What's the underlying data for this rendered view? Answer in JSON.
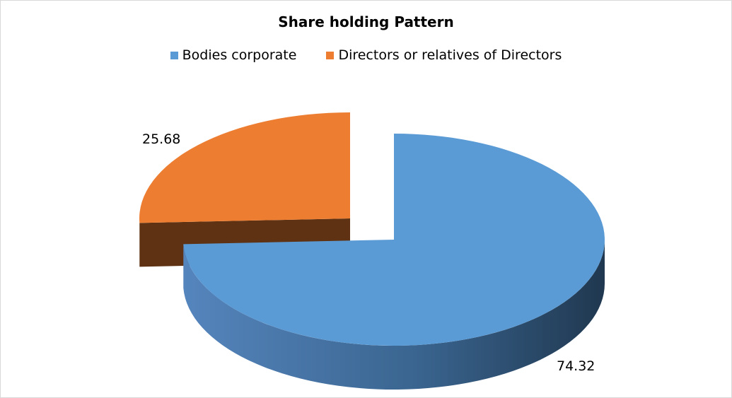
{
  "chart_data": {
    "type": "pie",
    "title": "Share holding Pattern",
    "legend_position": "top",
    "style": "3d-exploded",
    "slices": [
      {
        "name": "Bodies corporate",
        "value": 74.32,
        "label": "74.32",
        "color": "#5b9bd5"
      },
      {
        "name": "Directors or relatives of Directors",
        "value": 25.68,
        "label": "25.68",
        "color": "#ed7d31"
      }
    ]
  }
}
